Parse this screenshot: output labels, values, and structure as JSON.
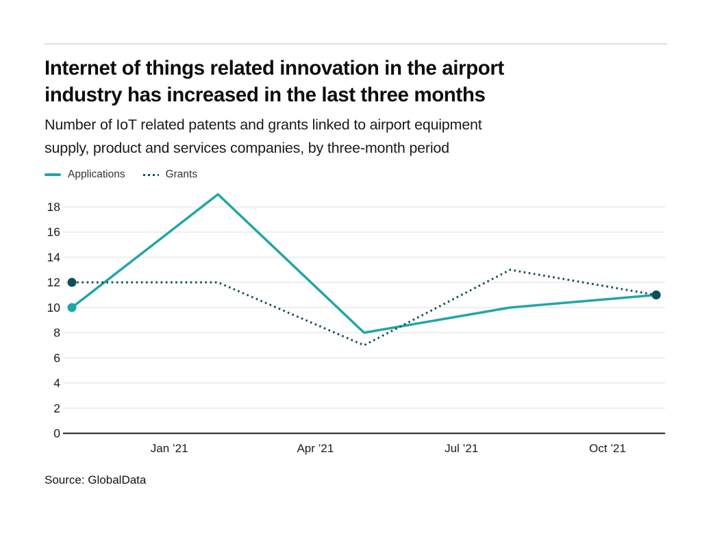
{
  "page": {
    "title_line1": "Internet of things related innovation in the airport",
    "title_line2": "industry has increased in the last three months",
    "subtitle_line1": "Number of IoT related patents and grants linked to airport equipment",
    "subtitle_line2": "supply, product and services companies, by three-month period",
    "source": "Source: GlobalData"
  },
  "legend": {
    "items": [
      {
        "label": "Applications",
        "color": "#20a6a6",
        "style": "solid"
      },
      {
        "label": "Grants",
        "color": "#0e4f58",
        "style": "dotted"
      }
    ]
  },
  "chart_data": {
    "type": "line",
    "title": "Internet of things related innovation in the airport industry has increased in the last three months",
    "subtitle": "Number of IoT related patents and grants linked to airport equipment supply, product and services companies, by three-month period",
    "x_tick_labels": [
      "Jan ’21",
      "Apr ’21",
      "Jul ’21",
      "Oct ’21"
    ],
    "series": [
      {
        "name": "Applications",
        "values": [
          10,
          19,
          8,
          10,
          11
        ],
        "color": "#20a6a6",
        "line_style": "solid",
        "markers": "first-last"
      },
      {
        "name": "Grants",
        "values": [
          12,
          12,
          7,
          13,
          11
        ],
        "color": "#0e4f58",
        "line_style": "dotted",
        "markers": "first-last"
      }
    ],
    "yticks": [
      0,
      2,
      4,
      6,
      8,
      10,
      12,
      14,
      16,
      18
    ],
    "ylim": [
      0,
      19
    ],
    "grid": true,
    "legend_position": "top-left",
    "source": "GlobalData",
    "colors": {
      "grid_line": "#e9e9e9",
      "axis_line": "#1a1a1a",
      "tick_text": "#1a1a1a"
    }
  }
}
